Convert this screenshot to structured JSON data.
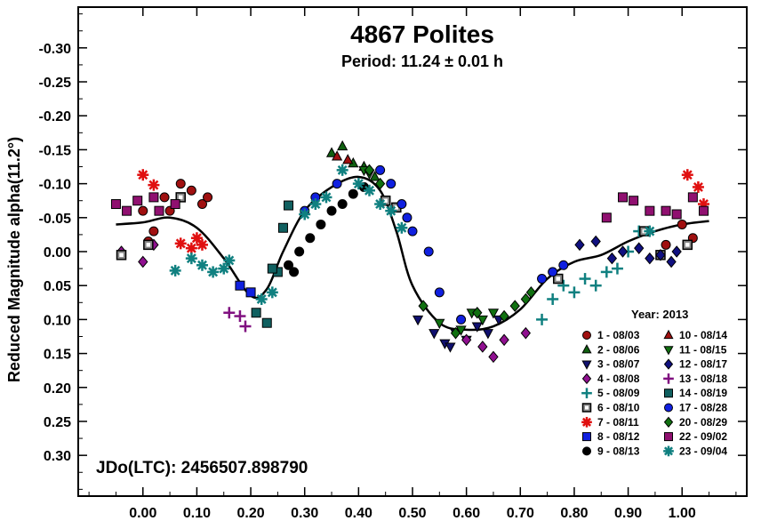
{
  "chart_data": {
    "type": "scatter",
    "title": "4867 Polites",
    "subtitle": "Period: 11.24 ± 0.01 h",
    "ylabel": "Reduced Magnitude alpha(11.2°)",
    "xlabel": "",
    "xlim": [
      -0.12,
      1.12
    ],
    "ylim": [
      0.36,
      -0.36
    ],
    "y_inverted": true,
    "x_ticks": [
      "0.00",
      "0.10",
      "0.20",
      "0.30",
      "0.40",
      "0.50",
      "0.60",
      "0.70",
      "0.80",
      "0.90",
      "1.00"
    ],
    "y_ticks": [
      "-0.30",
      "-0.25",
      "-0.20",
      "-0.15",
      "-0.10",
      "-0.05",
      "0.00",
      "0.05",
      "0.10",
      "0.15",
      "0.20",
      "0.25",
      "0.30"
    ],
    "legend_title": "Year: 2013",
    "legend_placement": "bottom-right",
    "annotation": "JDo(LTC): 2456507.898790",
    "fit_curve": [
      [
        -0.05,
        -0.04
      ],
      [
        0.0,
        -0.043
      ],
      [
        0.05,
        -0.05
      ],
      [
        0.1,
        -0.035
      ],
      [
        0.15,
        0.01
      ],
      [
        0.2,
        0.065
      ],
      [
        0.23,
        0.055
      ],
      [
        0.26,
        0.0
      ],
      [
        0.3,
        -0.06
      ],
      [
        0.35,
        -0.095
      ],
      [
        0.4,
        -0.11
      ],
      [
        0.44,
        -0.09
      ],
      [
        0.47,
        -0.03
      ],
      [
        0.5,
        0.05
      ],
      [
        0.55,
        0.105
      ],
      [
        0.6,
        0.115
      ],
      [
        0.65,
        0.11
      ],
      [
        0.7,
        0.085
      ],
      [
        0.75,
        0.04
      ],
      [
        0.8,
        0.015
      ],
      [
        0.85,
        0.005
      ],
      [
        0.9,
        -0.015
      ],
      [
        0.95,
        -0.03
      ],
      [
        1.0,
        -0.04
      ],
      [
        1.05,
        -0.045
      ]
    ],
    "series": [
      {
        "name": "1 - 08/03",
        "marker": "circle",
        "color": "#a01010",
        "points": [
          [
            0.0,
            -0.06
          ],
          [
            0.04,
            -0.08
          ],
          [
            0.07,
            -0.1
          ],
          [
            0.09,
            -0.09
          ],
          [
            0.11,
            -0.07
          ],
          [
            0.12,
            -0.08
          ],
          [
            0.02,
            -0.03
          ],
          [
            0.05,
            -0.06
          ],
          [
            0.97,
            -0.01
          ],
          [
            1.0,
            -0.04
          ],
          [
            1.02,
            -0.02
          ],
          [
            0.01,
            -0.015
          ]
        ]
      },
      {
        "name": "2 - 08/06",
        "marker": "triangle-up",
        "color": "#106010",
        "points": [
          [
            0.35,
            -0.145
          ],
          [
            0.37,
            -0.155
          ],
          [
            0.39,
            -0.13
          ],
          [
            0.41,
            -0.125
          ],
          [
            0.43,
            -0.11
          ]
        ]
      },
      {
        "name": "3 - 08/07",
        "marker": "triangle-down",
        "color": "#101070",
        "points": [
          [
            0.51,
            0.1
          ],
          [
            0.54,
            0.12
          ],
          [
            0.56,
            0.135
          ],
          [
            0.58,
            0.12
          ],
          [
            0.6,
            0.13
          ],
          [
            0.62,
            0.11
          ],
          [
            0.64,
            0.12
          ],
          [
            0.66,
            0.1
          ],
          [
            0.57,
            0.14
          ]
        ]
      },
      {
        "name": "4 - 08/08",
        "marker": "diamond",
        "color": "#901090",
        "points": [
          [
            -0.04,
            0.0
          ],
          [
            0.0,
            0.015
          ],
          [
            0.02,
            -0.01
          ],
          [
            0.6,
            0.13
          ],
          [
            0.63,
            0.14
          ],
          [
            0.65,
            0.155
          ],
          [
            0.67,
            0.13
          ],
          [
            0.71,
            0.12
          ]
        ]
      },
      {
        "name": "5 - 08/09",
        "marker": "plus",
        "color": "#108080",
        "points": [
          [
            0.74,
            0.1
          ],
          [
            0.76,
            0.07
          ],
          [
            0.78,
            0.05
          ],
          [
            0.8,
            0.06
          ],
          [
            0.82,
            0.04
          ],
          [
            0.84,
            0.05
          ],
          [
            0.86,
            0.03
          ],
          [
            0.88,
            0.025
          ],
          [
            0.9,
            0.0
          ],
          [
            0.92,
            -0.03
          ]
        ]
      },
      {
        "name": "6 - 08/10",
        "marker": "square-open",
        "color": "#505050",
        "points": [
          [
            -0.04,
            0.005
          ],
          [
            0.01,
            -0.01
          ],
          [
            0.07,
            -0.08
          ],
          [
            0.45,
            -0.075
          ],
          [
            0.47,
            -0.065
          ],
          [
            0.77,
            0.04
          ],
          [
            0.93,
            -0.03
          ],
          [
            0.96,
            0.005
          ],
          [
            1.01,
            -0.01
          ]
        ]
      },
      {
        "name": "7 - 08/11",
        "marker": "asterisk",
        "color": "#e01010",
        "points": [
          [
            0.0,
            -0.113
          ],
          [
            0.02,
            -0.098
          ],
          [
            0.07,
            -0.012
          ],
          [
            0.09,
            -0.005
          ],
          [
            0.1,
            -0.02
          ],
          [
            0.11,
            -0.01
          ],
          [
            1.01,
            -0.113
          ],
          [
            1.03,
            -0.095
          ],
          [
            1.04,
            -0.07
          ]
        ]
      },
      {
        "name": "8 - 08/12",
        "marker": "square",
        "color": "#1020e0",
        "points": [
          [
            0.18,
            0.05
          ],
          [
            0.2,
            0.06
          ]
        ]
      },
      {
        "name": "9 - 08/13",
        "marker": "circle",
        "color": "#000000",
        "points": [
          [
            0.27,
            0.02
          ],
          [
            0.29,
            0.0
          ],
          [
            0.31,
            -0.02
          ],
          [
            0.33,
            -0.04
          ],
          [
            0.35,
            -0.06
          ],
          [
            0.37,
            -0.07
          ],
          [
            0.39,
            -0.085
          ],
          [
            0.41,
            -0.095
          ],
          [
            0.28,
            0.03
          ]
        ]
      },
      {
        "name": "10 - 08/14",
        "marker": "triangle-up",
        "color": "#a01010",
        "points": [
          [
            0.36,
            -0.14
          ],
          [
            0.38,
            -0.135
          ]
        ]
      },
      {
        "name": "11 - 08/15",
        "marker": "triangle-down",
        "color": "#107010",
        "points": [
          [
            0.55,
            0.105
          ],
          [
            0.59,
            0.115
          ],
          [
            0.61,
            0.09
          ],
          [
            0.63,
            0.1
          ],
          [
            0.65,
            0.09
          ],
          [
            0.41,
            -0.12
          ],
          [
            0.42,
            -0.115
          ]
        ]
      },
      {
        "name": "12 - 08/17",
        "marker": "diamond",
        "color": "#101080",
        "points": [
          [
            0.81,
            -0.01
          ],
          [
            0.84,
            -0.015
          ],
          [
            0.87,
            0.01
          ],
          [
            0.89,
            0.0
          ],
          [
            0.92,
            -0.005
          ],
          [
            0.94,
            0.01
          ],
          [
            0.96,
            0.005
          ],
          [
            0.98,
            0.015
          ],
          [
            0.99,
            0.0
          ]
        ]
      },
      {
        "name": "13 - 08/18",
        "marker": "plus",
        "color": "#801080",
        "points": [
          [
            0.16,
            0.09
          ],
          [
            0.18,
            0.095
          ],
          [
            0.19,
            0.11
          ]
        ]
      },
      {
        "name": "14 - 08/19",
        "marker": "square",
        "color": "#106060",
        "points": [
          [
            0.21,
            0.09
          ],
          [
            0.23,
            0.105
          ],
          [
            0.25,
            0.03
          ],
          [
            0.26,
            -0.035
          ],
          [
            0.27,
            -0.068
          ],
          [
            0.24,
            0.025
          ]
        ]
      },
      {
        "name": "17 - 08/28",
        "marker": "circle",
        "color": "#1020e0",
        "points": [
          [
            0.3,
            -0.06
          ],
          [
            0.32,
            -0.08
          ],
          [
            0.36,
            -0.1
          ],
          [
            0.44,
            -0.12
          ],
          [
            0.46,
            -0.1
          ],
          [
            0.48,
            -0.07
          ],
          [
            0.49,
            -0.05
          ],
          [
            0.5,
            -0.03
          ],
          [
            0.53,
            0.0
          ],
          [
            0.55,
            0.06
          ],
          [
            0.59,
            0.1
          ],
          [
            0.74,
            0.04
          ],
          [
            0.76,
            0.03
          ],
          [
            0.78,
            0.02
          ]
        ]
      },
      {
        "name": "20 - 08/29",
        "marker": "diamond",
        "color": "#107010",
        "points": [
          [
            0.42,
            -0.12
          ],
          [
            0.44,
            -0.1
          ],
          [
            0.52,
            0.08
          ],
          [
            0.58,
            0.12
          ],
          [
            0.62,
            0.09
          ],
          [
            0.67,
            0.095
          ],
          [
            0.69,
            0.08
          ],
          [
            0.71,
            0.07
          ],
          [
            0.72,
            0.06
          ]
        ]
      },
      {
        "name": "22 - 09/02",
        "marker": "square",
        "color": "#901070",
        "points": [
          [
            -0.05,
            -0.07
          ],
          [
            -0.03,
            -0.06
          ],
          [
            -0.01,
            -0.075
          ],
          [
            0.02,
            -0.08
          ],
          [
            0.03,
            -0.06
          ],
          [
            0.06,
            -0.07
          ],
          [
            0.86,
            -0.05
          ],
          [
            0.89,
            -0.08
          ],
          [
            0.91,
            -0.075
          ],
          [
            0.94,
            -0.06
          ],
          [
            0.97,
            -0.06
          ],
          [
            0.99,
            -0.055
          ],
          [
            1.02,
            -0.08
          ],
          [
            1.04,
            -0.06
          ]
        ]
      },
      {
        "name": "23 - 09/04",
        "marker": "asterisk",
        "color": "#108080",
        "points": [
          [
            0.06,
            0.028
          ],
          [
            0.09,
            0.01
          ],
          [
            0.11,
            0.02
          ],
          [
            0.13,
            0.03
          ],
          [
            0.15,
            0.025
          ],
          [
            0.16,
            0.013
          ],
          [
            0.22,
            0.07
          ],
          [
            0.24,
            0.06
          ],
          [
            0.3,
            -0.055
          ],
          [
            0.32,
            -0.07
          ],
          [
            0.34,
            -0.08
          ],
          [
            0.37,
            -0.12
          ],
          [
            0.4,
            -0.1
          ],
          [
            0.42,
            -0.09
          ],
          [
            0.44,
            -0.07
          ],
          [
            0.46,
            -0.06
          ],
          [
            0.48,
            -0.035
          ],
          [
            0.94,
            -0.03
          ]
        ]
      }
    ]
  }
}
